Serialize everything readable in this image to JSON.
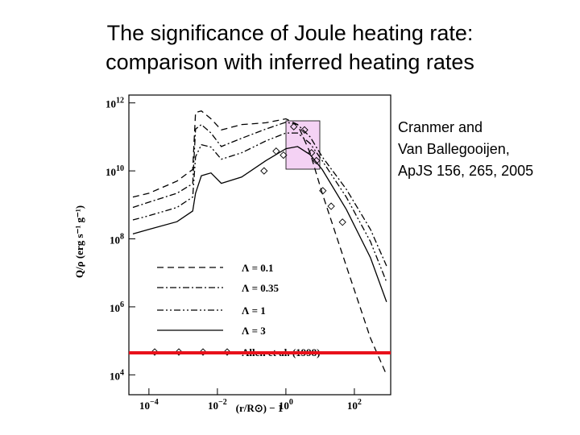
{
  "title": [
    "The significance of Joule heating rate:",
    "comparison with inferred heating rates"
  ],
  "citation": [
    "Cranmer and",
    "Van Ballegooijen,",
    "ApJS 156, 265, 2005"
  ],
  "chart_data": {
    "type": "line",
    "xlabel": "(r/R⊙) − 1",
    "ylabel": "Q/ρ (erg s⁻¹ g⁻¹)",
    "xlog": true,
    "ylog": true,
    "xlim": [
      2.6e-05,
      1150
    ],
    "ylim": [
      2600,
      1700000000000.0
    ],
    "xticks": [
      {
        "value": 0.0001,
        "label": "10^−4"
      },
      {
        "value": 0.01,
        "label": "10^−2"
      },
      {
        "value": 1,
        "label": "10^0"
      },
      {
        "value": 100,
        "label": "10^2"
      }
    ],
    "yticks": [
      {
        "value": 10000,
        "label": "10^4"
      },
      {
        "value": 1000000,
        "label": "10^6"
      },
      {
        "value": 100000000,
        "label": "10^8"
      },
      {
        "value": 10000000000,
        "label": "10^10"
      },
      {
        "value": 1000000000000,
        "label": "10^12"
      }
    ],
    "x": [
      3.4e-05,
      0.0001,
      0.00066,
      0.0019,
      0.0023,
      0.0034,
      0.0065,
      0.013,
      0.051,
      0.26,
      1,
      2.2,
      5.1,
      11.5,
      58,
      295,
      870
    ],
    "series": [
      {
        "name": "Λ = 0.1",
        "color": "#000000",
        "dash": "dashed",
        "values": [
          1700000000.0,
          2200000000.0,
          5000000000.0,
          11000000000.0,
          520000000000.0,
          580000000000.0,
          340000000000.0,
          160000000000.0,
          230000000000.0,
          260000000000.0,
          340000000000.0,
          230000000000.0,
          34000000000.0,
          2200000000.0,
          16000000.0,
          120000.0,
          10000.0
        ]
      },
      {
        "name": "Λ = 0.35",
        "color": "#000000",
        "dash": "dashdot",
        "values": [
          840000000.0,
          1200000000.0,
          2200000000.0,
          4200000000.0,
          170000000000.0,
          230000000000.0,
          130000000000.0,
          52000000000.0,
          91000000000.0,
          170000000000.0,
          270000000000.0,
          230000000000.0,
          100000000000.0,
          26000000000.0,
          2900000000.0,
          190000000.0,
          16000000.0
        ]
      },
      {
        "name": "Λ = 1",
        "color": "#000000",
        "dash": "dashdotdot",
        "values": [
          360000000.0,
          480000000.0,
          840000000.0,
          1700000000.0,
          26000000000.0,
          59000000000.0,
          50000000000.0,
          22000000000.0,
          34000000000.0,
          76000000000.0,
          130000000000.0,
          130000000000.0,
          64000000000.0,
          20000000000.0,
          1700000000.0,
          83000000.0,
          5400000.0
        ]
      },
      {
        "name": "Λ = 3",
        "color": "#000000",
        "dash": "solid",
        "values": [
          140000000.0,
          190000000.0,
          320000000.0,
          660000000.0,
          2200000000.0,
          7200000000.0,
          8700000000.0,
          4300000000.0,
          6600000000.0,
          20000000000.0,
          45000000000.0,
          52000000000.0,
          30000000000.0,
          11000000000.0,
          740000000.0,
          28000000.0,
          1400000.0
        ]
      },
      {
        "name": "Allen et al. (1998)",
        "color": "#000000",
        "marker": "diamond",
        "x": [
          1.7,
          3.5,
          0.52,
          0.85,
          5.6,
          7.8,
          0.23,
          12,
          21,
          45
        ],
        "values": [
          200000000000.0,
          160000000000.0,
          38000000000.0,
          29000000000.0,
          34000000000.0,
          20000000000.0,
          10000000000.0,
          2600000000.0,
          910000000.0,
          310000000.0
        ]
      }
    ]
  }
}
